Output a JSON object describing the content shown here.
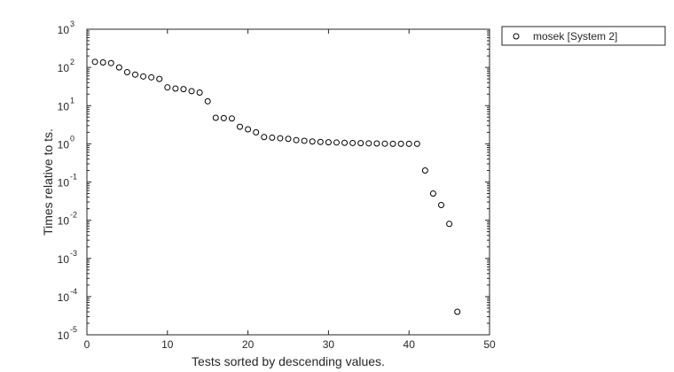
{
  "chart_data": {
    "type": "scatter",
    "title": "",
    "xlabel": "Tests sorted by descending values.",
    "ylabel": "Times relative to ts.",
    "xlim": [
      0,
      50
    ],
    "ylim": [
      1e-05,
      1000
    ],
    "yscale": "log",
    "grid": false,
    "legend_position": "outside-top-right",
    "x_ticks": [
      "0",
      "10",
      "20",
      "30",
      "40",
      "50"
    ],
    "y_ticks": [
      {
        "base": "10",
        "exp": "-5",
        "value": 1e-05
      },
      {
        "base": "10",
        "exp": "-4",
        "value": 0.0001
      },
      {
        "base": "10",
        "exp": "-3",
        "value": 0.001
      },
      {
        "base": "10",
        "exp": "-2",
        "value": 0.01
      },
      {
        "base": "10",
        "exp": "-1",
        "value": 0.1
      },
      {
        "base": "10",
        "exp": "0",
        "value": 1
      },
      {
        "base": "10",
        "exp": "1",
        "value": 10
      },
      {
        "base": "10",
        "exp": "2",
        "value": 100
      },
      {
        "base": "10",
        "exp": "3",
        "value": 1000
      }
    ],
    "series": [
      {
        "name": "mosek [System 2]",
        "marker": "circle",
        "color": "#000000",
        "x": [
          1,
          2,
          3,
          4,
          5,
          6,
          7,
          8,
          9,
          10,
          11,
          12,
          13,
          14,
          15,
          16,
          17,
          18,
          19,
          20,
          21,
          22,
          23,
          24,
          25,
          26,
          27,
          28,
          29,
          30,
          31,
          32,
          33,
          34,
          35,
          36,
          37,
          38,
          39,
          40,
          41,
          42,
          43,
          44,
          45,
          46
        ],
        "y": [
          140,
          135,
          130,
          100,
          75,
          65,
          58,
          55,
          50,
          30,
          28,
          27,
          24,
          22,
          13,
          4.8,
          4.7,
          4.6,
          2.8,
          2.4,
          2.0,
          1.5,
          1.45,
          1.4,
          1.35,
          1.25,
          1.2,
          1.15,
          1.12,
          1.1,
          1.08,
          1.06,
          1.05,
          1.04,
          1.03,
          1.02,
          1.01,
          1.0,
          1.0,
          1.0,
          1.0,
          0.2,
          0.05,
          0.025,
          0.008,
          4e-05
        ]
      }
    ]
  }
}
